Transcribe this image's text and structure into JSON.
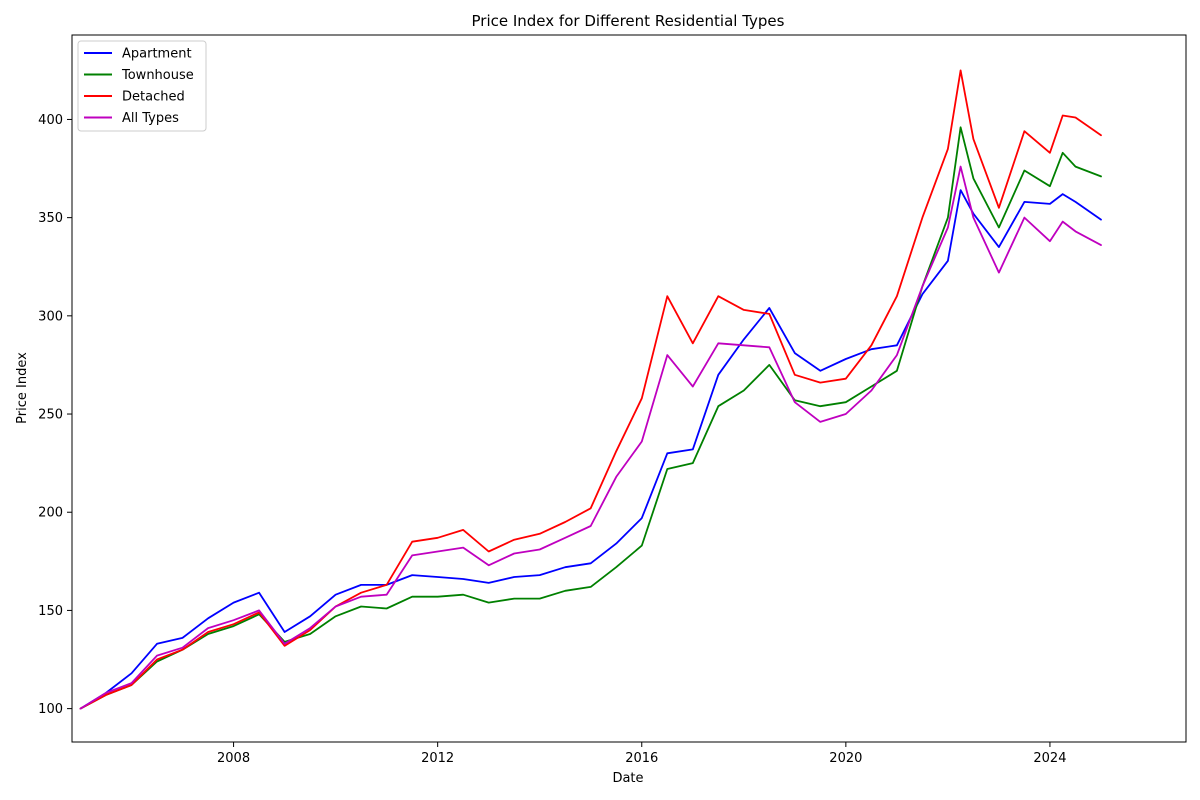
{
  "chart_data": {
    "type": "line",
    "title": "Price Index for Different Residential Types",
    "xlabel": "Date",
    "ylabel": "Price Index",
    "xlim": [
      "2004-11-01",
      "2026-09-01"
    ],
    "ylim": [
      83,
      443
    ],
    "x_ticks": [
      "2008",
      "2012",
      "2016",
      "2020",
      "2024"
    ],
    "y_ticks": [
      100,
      150,
      200,
      250,
      300,
      350,
      400
    ],
    "grid": false,
    "legend_position": "top-left",
    "x": [
      "2005-01",
      "2005-07",
      "2006-01",
      "2006-07",
      "2007-01",
      "2007-07",
      "2008-01",
      "2008-07",
      "2009-01",
      "2009-07",
      "2010-01",
      "2010-07",
      "2011-01",
      "2011-07",
      "2012-01",
      "2012-07",
      "2013-01",
      "2013-07",
      "2014-01",
      "2014-07",
      "2015-01",
      "2015-07",
      "2016-01",
      "2016-07",
      "2017-01",
      "2017-07",
      "2018-01",
      "2018-07",
      "2019-01",
      "2019-07",
      "2020-01",
      "2020-07",
      "2021-01",
      "2021-07",
      "2022-01",
      "2022-04",
      "2022-07",
      "2023-01",
      "2023-07",
      "2024-01",
      "2024-04",
      "2024-07",
      "2025-01"
    ],
    "series": [
      {
        "name": "Apartment",
        "color": "#0000ff",
        "values": [
          100,
          108,
          118,
          133,
          136,
          146,
          154,
          159,
          139,
          147,
          158,
          163,
          163,
          168,
          167,
          166,
          164,
          167,
          168,
          172,
          174,
          184,
          197,
          230,
          232,
          270,
          288,
          304,
          281,
          272,
          278,
          283,
          285,
          311,
          328,
          364,
          352,
          335,
          358,
          357,
          362,
          358,
          349
        ]
      },
      {
        "name": "Townhouse",
        "color": "#008000",
        "values": [
          100,
          107,
          112,
          124,
          130,
          138,
          142,
          148,
          134,
          138,
          147,
          152,
          151,
          157,
          157,
          158,
          154,
          156,
          156,
          160,
          162,
          172,
          183,
          222,
          225,
          254,
          262,
          275,
          257,
          254,
          256,
          264,
          272,
          315,
          350,
          396,
          370,
          345,
          374,
          366,
          383,
          376,
          371
        ]
      },
      {
        "name": "Detached",
        "color": "#ff0000",
        "values": [
          100,
          107,
          112,
          125,
          130,
          139,
          143,
          149,
          132,
          140,
          152,
          159,
          163,
          185,
          187,
          191,
          180,
          186,
          189,
          195,
          202,
          231,
          258,
          310,
          286,
          310,
          303,
          301,
          270,
          266,
          268,
          285,
          310,
          350,
          385,
          425,
          390,
          355,
          394,
          383,
          402,
          401,
          392
        ]
      },
      {
        "name": "All Types",
        "color": "#bf00bf",
        "values": [
          100,
          108,
          113,
          127,
          131,
          141,
          145,
          150,
          133,
          141,
          152,
          157,
          158,
          178,
          180,
          182,
          173,
          179,
          181,
          187,
          193,
          218,
          236,
          280,
          264,
          286,
          285,
          284,
          256,
          246,
          250,
          262,
          280,
          315,
          345,
          376,
          350,
          322,
          350,
          338,
          348,
          343,
          336
        ]
      }
    ]
  }
}
